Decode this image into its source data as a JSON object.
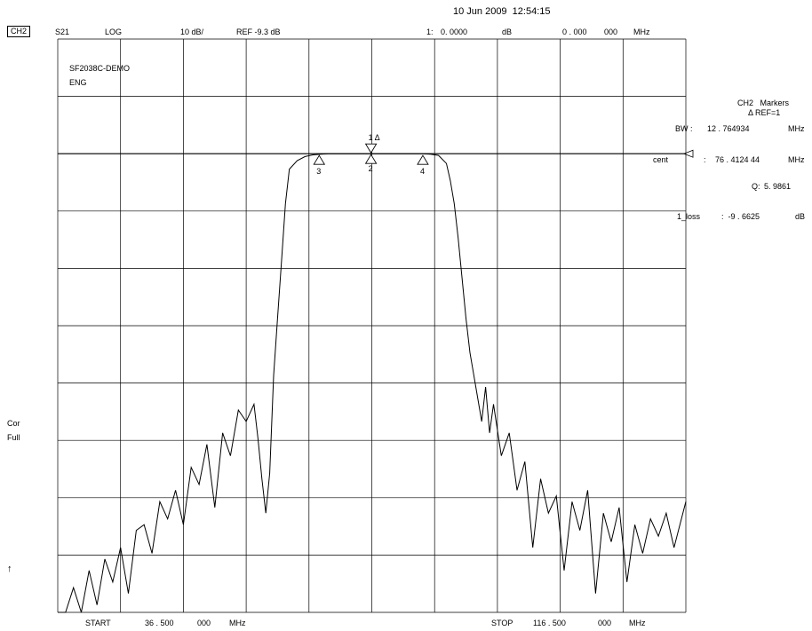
{
  "header": {
    "timestamp": "10 Jun 2009  12:54:15",
    "channel": "CH2",
    "param": "S21",
    "format": "LOG",
    "scale": "10 dB/",
    "ref": "REF -9.3 dB",
    "marker_readout": {
      "num": "1:",
      "value": "0. 0000",
      "unit1": "dB",
      "freq": "0 . 000",
      "freq2": "000",
      "unit2": "MHz"
    }
  },
  "title": {
    "line1": "SF2038C-DEMO",
    "line2": "ENG"
  },
  "markers_panel": {
    "heading": "CH2   Markers",
    "ref_label": "REF=1",
    "bw_label": "BW :",
    "bw_value": "12 . 764934",
    "bw_unit": "MHz",
    "cent_label": "cent",
    "cent_colon": ":",
    "cent_value": "76 . 4124 44",
    "cent_unit": "MHz",
    "q_label": "Q:",
    "q_value": "5. 9861",
    "loss_label": "1_loss",
    "loss_value": ":  -9 . 6625",
    "loss_unit": "dB"
  },
  "side_labels": {
    "cor": "Cor",
    "full": "Full",
    "arrow": "↑"
  },
  "footer": {
    "start_label": "START",
    "start_v1": "36 . 500",
    "start_v2": "000",
    "start_unit": "MHz",
    "stop_label": "STOP",
    "stop_v1": "116 . 500",
    "stop_v2": "000",
    "stop_unit": "MHz"
  },
  "chart_data": {
    "type": "line",
    "x_start_mhz": 36.5,
    "x_stop_mhz": 116.5,
    "ref_db": -9.3,
    "db_per_div": 10,
    "x_divisions": 10,
    "y_divisions": 10,
    "grid": true,
    "series": [
      {
        "x": [
          36.5,
          37.5,
          38.5,
          39.5,
          40.5,
          41.5,
          42.5,
          43.5,
          44.5,
          45.5,
          46.5,
          47.5,
          48.5,
          49.5,
          50.5,
          51.5,
          52.5,
          53.5,
          54.5,
          55.5,
          56.5,
          57.5,
          58.5,
          59.5,
          60.5,
          61.5,
          62.0,
          62.5,
          63.0,
          63.5,
          64.0,
          64.5,
          65.0,
          65.5,
          66.0,
          67.0,
          68.0,
          69.0,
          70.0,
          71.0,
          72.0,
          73.0,
          74.0,
          75.0,
          76.0,
          77.0,
          78.0,
          79.0,
          80.0,
          81.0,
          82.0,
          83.0,
          84.0,
          85.0,
          86.0,
          86.5,
          87.0,
          87.5,
          88.0,
          88.5,
          89.0,
          89.5,
          90.0,
          90.5,
          91.0,
          91.5,
          92.0,
          93.0,
          94.0,
          95.0,
          96.0,
          97.0,
          98.0,
          99.0,
          100.0,
          101.0,
          102.0,
          103.0,
          104.0,
          105.0,
          106.0,
          107.0,
          108.0,
          109.0,
          110.0,
          111.0,
          112.0,
          113.0,
          114.0,
          115.0,
          116.5
        ],
        "y": [
          -96,
          -92,
          -85,
          -90,
          -82,
          -88,
          -80,
          -84,
          -78,
          -86,
          -75,
          -74,
          -79,
          -70,
          -73,
          -68,
          -74,
          -64,
          -67,
          -60,
          -71,
          -58,
          -62,
          -54,
          -56,
          -53,
          -59,
          -66,
          -72,
          -65,
          -48,
          -38,
          -28,
          -18,
          -12,
          -10.5,
          -9.8,
          -9.5,
          -9.4,
          -9.3,
          -9.3,
          -9.3,
          -9.3,
          -9.3,
          -9.3,
          -9.3,
          -9.3,
          -9.3,
          -9.3,
          -9.3,
          -9.3,
          -9.3,
          -9.4,
          -9.6,
          -11,
          -14,
          -18,
          -24,
          -31,
          -38,
          -44,
          -48,
          -52,
          -56,
          -50,
          -58,
          -53,
          -62,
          -58,
          -68,
          -63,
          -78,
          -66,
          -72,
          -69,
          -82,
          -70,
          -75,
          -68,
          -86,
          -72,
          -77,
          -71,
          -84,
          -74,
          -79,
          -73,
          -76,
          -72,
          -78,
          -70
        ]
      }
    ]
  }
}
